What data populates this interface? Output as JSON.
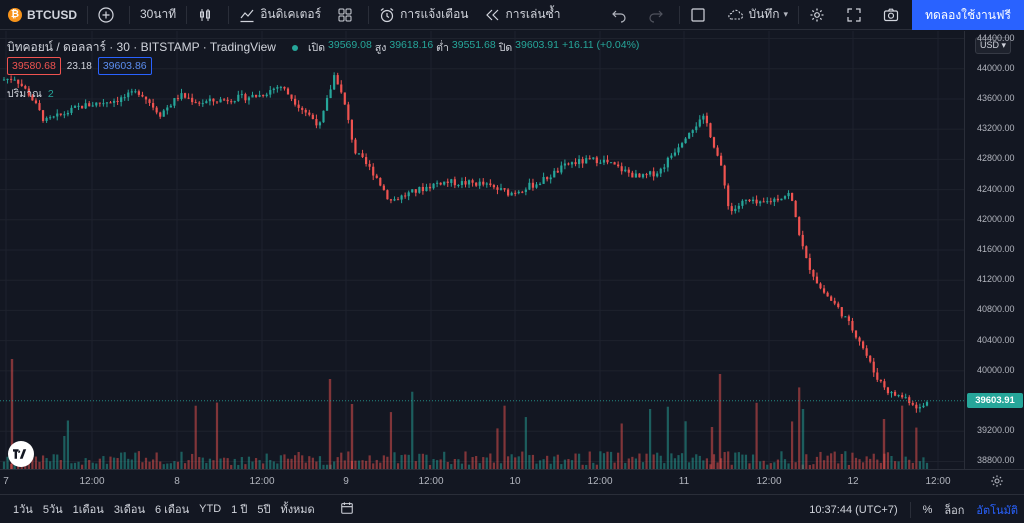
{
  "toolbar": {
    "symbol": "BTCUSD",
    "btc_glyph": "₿",
    "interval": "30นาที",
    "indicators": "อินดิเคเตอร์",
    "alerts": "การแจ้งเตือน",
    "replay": "การเล่นซ้ำ",
    "save": "บันทึก",
    "cta": "ทดลองใช้งานฟรี"
  },
  "legend": {
    "title": "บิทคอยน์ / ดอลลาร์ · 30 · BITSTAMP · TradingView",
    "open_label": "เปิด",
    "open": "39569.08",
    "high_label": "สูง",
    "high": "39618.16",
    "low_label": "ต่ำ",
    "low": "39551.68",
    "close_label": "ปิด",
    "close": "39603.91",
    "change": "+16.11 (+0.04%)",
    "bid": "39580.68",
    "spread": "23.18",
    "ask": "39603.86",
    "volume_label": "ปริมาณ",
    "volume_value": "2"
  },
  "price_axis": {
    "currency": "USD",
    "last_price": "39603.91",
    "ticks": [
      "44400.00",
      "44000.00",
      "43600.00",
      "43200.00",
      "42800.00",
      "42400.00",
      "42000.00",
      "41600.00",
      "41200.00",
      "40800.00",
      "40400.00",
      "40000.00",
      "39200.00",
      "38800.00"
    ]
  },
  "time_axis": {
    "labels": [
      "7",
      "12:00",
      "8",
      "12:00",
      "9",
      "12:00",
      "10",
      "12:00",
      "11",
      "12:00",
      "12",
      "12:00"
    ]
  },
  "bottom_bar": {
    "ranges": [
      "1วัน",
      "5วัน",
      "1เดือน",
      "3เดือน",
      "6 เดือน",
      "YTD",
      "1 ปี",
      "5ปี",
      "ทั้งหมด"
    ],
    "clock": "10:37:44 (UTC+7)",
    "percent": "%",
    "log": "ล็อก",
    "auto": "อัตโนมัติ"
  },
  "colors": {
    "up": "#26a69a",
    "down": "#ef5350",
    "accent": "#2962ff",
    "background": "#131722"
  },
  "chart_data": {
    "type": "candlestick",
    "symbol": "BTCUSD",
    "interval": "30",
    "ylim": [
      38700,
      44500
    ],
    "anchors": [
      {
        "x": 0,
        "y": 43850
      },
      {
        "x": 15,
        "y": 43880
      },
      {
        "x": 30,
        "y": 43650
      },
      {
        "x": 45,
        "y": 43300
      },
      {
        "x": 60,
        "y": 43380
      },
      {
        "x": 80,
        "y": 43500
      },
      {
        "x": 100,
        "y": 43550
      },
      {
        "x": 120,
        "y": 43600
      },
      {
        "x": 140,
        "y": 43700
      },
      {
        "x": 160,
        "y": 43400
      },
      {
        "x": 180,
        "y": 43650
      },
      {
        "x": 200,
        "y": 43550
      },
      {
        "x": 230,
        "y": 43600
      },
      {
        "x": 260,
        "y": 43650
      },
      {
        "x": 280,
        "y": 43780
      },
      {
        "x": 300,
        "y": 43500
      },
      {
        "x": 320,
        "y": 43250
      },
      {
        "x": 335,
        "y": 43950
      },
      {
        "x": 345,
        "y": 43500
      },
      {
        "x": 355,
        "y": 42900
      },
      {
        "x": 375,
        "y": 42600
      },
      {
        "x": 390,
        "y": 42250
      },
      {
        "x": 410,
        "y": 42350
      },
      {
        "x": 440,
        "y": 42500
      },
      {
        "x": 480,
        "y": 42480
      },
      {
        "x": 510,
        "y": 42350
      },
      {
        "x": 540,
        "y": 42500
      },
      {
        "x": 570,
        "y": 42750
      },
      {
        "x": 600,
        "y": 42800
      },
      {
        "x": 640,
        "y": 42550
      },
      {
        "x": 660,
        "y": 42650
      },
      {
        "x": 690,
        "y": 43200
      },
      {
        "x": 705,
        "y": 43350
      },
      {
        "x": 720,
        "y": 42750
      },
      {
        "x": 730,
        "y": 42100
      },
      {
        "x": 745,
        "y": 42250
      },
      {
        "x": 760,
        "y": 42200
      },
      {
        "x": 790,
        "y": 42350
      },
      {
        "x": 805,
        "y": 41500
      },
      {
        "x": 820,
        "y": 41100
      },
      {
        "x": 840,
        "y": 40800
      },
      {
        "x": 860,
        "y": 40400
      },
      {
        "x": 875,
        "y": 39950
      },
      {
        "x": 890,
        "y": 39700
      },
      {
        "x": 905,
        "y": 39650
      },
      {
        "x": 920,
        "y": 39500
      },
      {
        "x": 930,
        "y": 39604
      }
    ]
  }
}
